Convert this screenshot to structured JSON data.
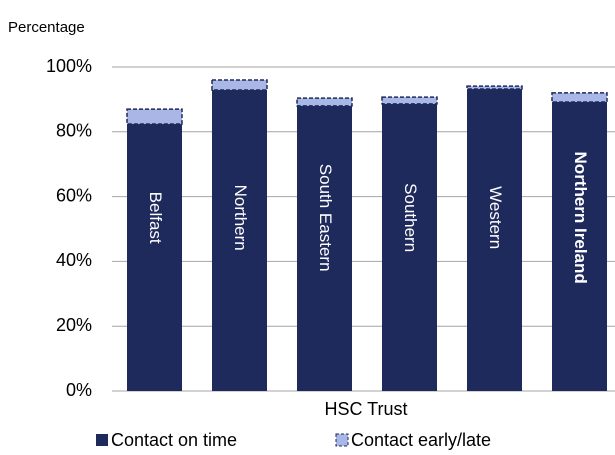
{
  "chart_data": {
    "type": "stacked_bar",
    "y_label": "Percentage",
    "x_label": "HSC Trust",
    "categories": [
      "Belfast",
      "Northern",
      "South Eastern",
      "Southern",
      "Western",
      "Northern Ireland"
    ],
    "series": [
      {
        "name": "Contact on time",
        "color": "#1f2a5c",
        "values": [
          82.4,
          92.9,
          88.0,
          88.6,
          93.2,
          89.2
        ]
      },
      {
        "name": "Contact early/late",
        "color": "#a9b7e6",
        "values": [
          4.6,
          3.1,
          2.4,
          2.1,
          0.9,
          2.8
        ]
      }
    ],
    "ylim": [
      0,
      100
    ],
    "yticks": [
      {
        "value": 0,
        "label": "0%"
      },
      {
        "value": 20,
        "label": "20%"
      },
      {
        "value": 40,
        "label": "40%"
      },
      {
        "value": 60,
        "label": "60%"
      },
      {
        "value": 80,
        "label": "80%"
      },
      {
        "value": 100,
        "label": "100%"
      }
    ],
    "grid": true
  }
}
